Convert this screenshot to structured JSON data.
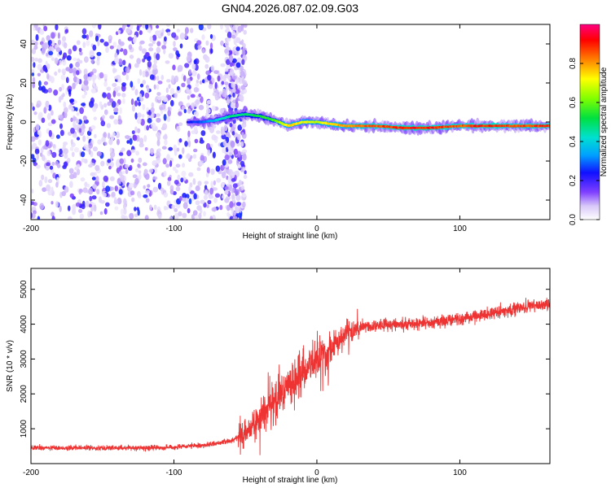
{
  "title": "GN04.2026.087.02.09.G03",
  "chart_data": [
    {
      "type": "heatmap",
      "panel": "spectrogram",
      "xlabel": "Height of straight line (km)",
      "ylabel": "Frequency (Hz)",
      "xlim": [
        -200,
        163
      ],
      "ylim": [
        -50,
        50
      ],
      "xticks": [
        -200,
        -100,
        0,
        100
      ],
      "yticks": [
        -40,
        -20,
        0,
        20,
        40
      ],
      "colorbar": {
        "label": "Normalized spectral amplitude",
        "range": [
          0,
          1
        ],
        "ticks": [
          0.0,
          0.2,
          0.4,
          0.6,
          0.8
        ]
      },
      "noise_region_x": [
        -200,
        -50
      ],
      "ridge": {
        "x": [
          -90,
          -80,
          -70,
          -60,
          -50,
          -40,
          -30,
          -20,
          -10,
          0,
          10,
          20,
          40,
          60,
          80,
          100,
          120,
          140,
          163
        ],
        "freq": [
          0,
          0,
          1,
          3,
          4,
          3,
          1,
          -2,
          0,
          0,
          -1,
          -2,
          -2,
          -3,
          -3,
          -2,
          -2,
          -2,
          -2
        ],
        "amplitude": [
          0.25,
          0.3,
          0.4,
          0.5,
          0.5,
          0.55,
          0.6,
          0.8,
          0.75,
          0.7,
          0.8,
          0.85,
          0.9,
          0.95,
          0.95,
          0.9,
          0.95,
          0.9,
          0.95
        ]
      }
    },
    {
      "type": "line",
      "panel": "snr",
      "xlabel": "Height of straight line (km)",
      "ylabel": "SNR (10 * v/v)",
      "xlim": [
        -200,
        163
      ],
      "ylim": [
        0,
        5600
      ],
      "xticks": [
        -200,
        -100,
        0,
        100
      ],
      "yticks": [
        1000,
        2000,
        3000,
        4000,
        5000
      ],
      "series": [
        {
          "name": "SNR",
          "color": "#ee3333",
          "x": [
            -200,
            -180,
            -160,
            -140,
            -120,
            -100,
            -80,
            -60,
            -50,
            -40,
            -30,
            -20,
            -10,
            0,
            10,
            20,
            30,
            40,
            50,
            60,
            80,
            100,
            120,
            140,
            163
          ],
          "y": [
            450,
            450,
            450,
            450,
            450,
            470,
            520,
            650,
            900,
            1300,
            1800,
            2200,
            2600,
            3000,
            3350,
            3700,
            3900,
            3950,
            4000,
            4000,
            4050,
            4150,
            4300,
            4450,
            4600
          ]
        }
      ]
    }
  ]
}
